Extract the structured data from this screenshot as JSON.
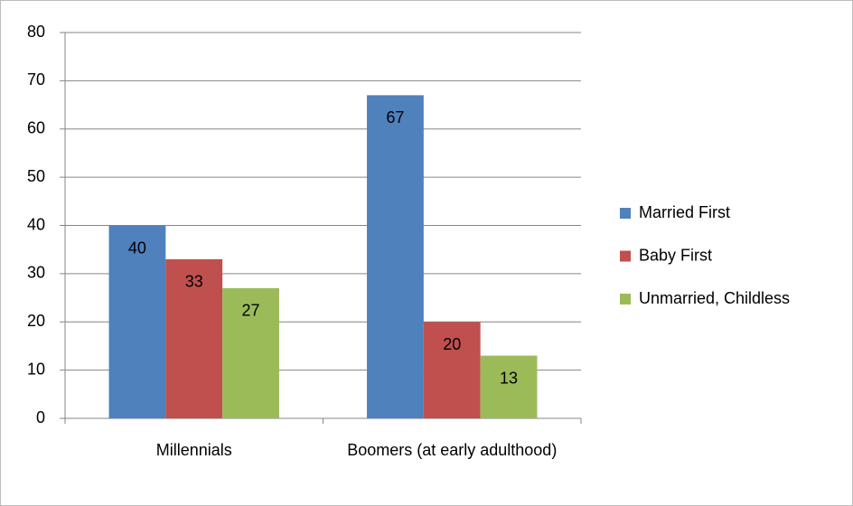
{
  "chart_data": {
    "type": "bar",
    "categories": [
      "Millennials",
      "Boomers (at early adulthood)"
    ],
    "series": [
      {
        "name": "Married First",
        "color": "#4f81bd",
        "values": [
          40,
          67
        ]
      },
      {
        "name": "Baby First",
        "color": "#c0504d",
        "values": [
          33,
          20
        ]
      },
      {
        "name": "Unmarried, Childless",
        "color": "#9bbb59",
        "values": [
          27,
          13
        ]
      }
    ],
    "ylim": [
      0,
      80
    ],
    "yticks": [
      0,
      10,
      20,
      30,
      40,
      50,
      60,
      70,
      80
    ],
    "grid": true,
    "legend": "right"
  }
}
